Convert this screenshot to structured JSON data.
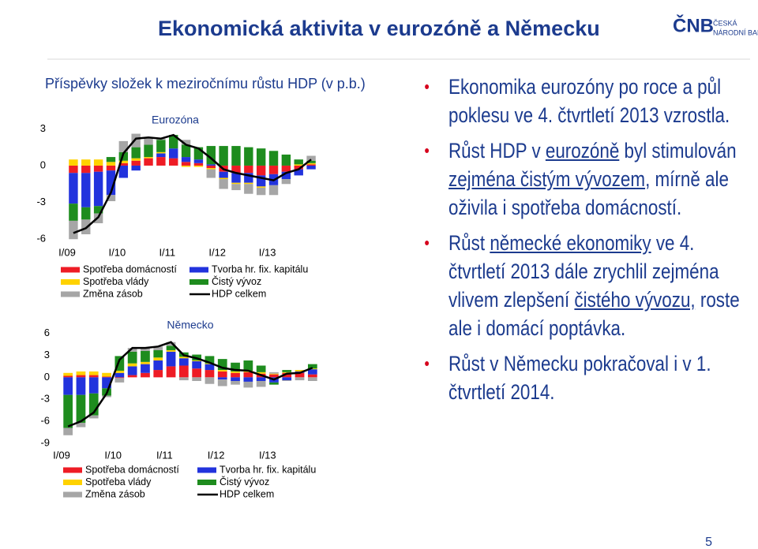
{
  "header": {
    "title": "Ekonomická aktivita v eurozóně a Německu"
  },
  "logo": {
    "mark": "ČNB",
    "line1": "ČESKÁ",
    "line2": "NÁRODNÍ BANKA"
  },
  "subtitle": "Příspěvky složek k meziročnímu růstu HDP (v p.b.)",
  "chart_data": [
    {
      "type": "bar",
      "stacked": true,
      "title": "Eurozóna",
      "categories": [
        "I/09",
        null,
        null,
        null,
        "I/10",
        null,
        null,
        null,
        "I/11",
        null,
        null,
        null,
        "I/12",
        null,
        null,
        null,
        "I/13",
        null,
        null,
        null
      ],
      "ylim": [
        -6.5,
        4.5
      ],
      "yticks": [
        3,
        0,
        -3,
        -6
      ],
      "series": [
        {
          "name": "Spotřeba domácností",
          "color": "#ee1c25",
          "values": [
            -0.6,
            -0.6,
            -0.5,
            -0.4,
            0.2,
            0.4,
            0.6,
            0.7,
            0.6,
            0.3,
            0.2,
            -0.2,
            -0.5,
            -0.6,
            -0.6,
            -0.8,
            -0.7,
            -0.5,
            -0.3,
            0.1
          ]
        },
        {
          "name": "Tvorba hr. fix. kapitálu",
          "color": "#2233dd",
          "values": [
            -2.5,
            -2.8,
            -2.8,
            -2.0,
            -1.0,
            -0.4,
            0.0,
            0.3,
            0.8,
            0.4,
            0.3,
            0.1,
            -0.5,
            -0.8,
            -0.8,
            -0.9,
            -0.9,
            -0.6,
            -0.5,
            -0.3
          ]
        },
        {
          "name": "Spotřeba vlády",
          "color": "#ffd200",
          "values": [
            0.5,
            0.5,
            0.5,
            0.3,
            0.2,
            0.2,
            0.1,
            0.1,
            0.0,
            -0.1,
            -0.1,
            -0.1,
            -0.1,
            -0.1,
            -0.1,
            -0.1,
            0.0,
            0.0,
            0.1,
            0.1
          ]
        },
        {
          "name": "Čistý vývoz",
          "color": "#1e8c1e",
          "values": [
            -1.4,
            -1.0,
            -0.6,
            0.4,
            0.7,
            0.9,
            1.0,
            1.0,
            1.1,
            1.0,
            1.0,
            1.5,
            1.6,
            1.6,
            1.5,
            1.4,
            1.2,
            0.9,
            0.4,
            0.2
          ]
        },
        {
          "name": "Změna zásob",
          "color": "#a6a6a6",
          "values": [
            -1.5,
            -1.2,
            -0.8,
            -0.5,
            0.9,
            1.1,
            0.6,
            0.1,
            0.0,
            0.4,
            0.0,
            -0.7,
            -0.8,
            -0.5,
            -0.8,
            -0.6,
            -0.8,
            -0.4,
            0.0,
            0.4
          ]
        },
        {
          "name": "HDP celkem",
          "type": "line",
          "color": "#000000",
          "values": [
            -5.5,
            -5.1,
            -4.2,
            -2.2,
            1.0,
            2.2,
            2.3,
            2.2,
            2.5,
            1.7,
            1.4,
            0.6,
            -0.3,
            -0.6,
            -0.8,
            -1.0,
            -1.2,
            -0.6,
            -0.3,
            0.5
          ]
        }
      ]
    },
    {
      "type": "bar",
      "stacked": true,
      "title": "Německo",
      "categories": [
        "I/09",
        null,
        null,
        null,
        "I/10",
        null,
        null,
        null,
        "I/11",
        null,
        null,
        null,
        "I/12",
        null,
        null,
        null,
        "I/13",
        null,
        null,
        null
      ],
      "ylim": [
        -9,
        8
      ],
      "yticks": [
        6,
        3,
        0,
        -3,
        -6,
        -9
      ],
      "series": [
        {
          "name": "Spotřeba domácností",
          "color": "#ee1c25",
          "values": [
            0.2,
            0.3,
            0.3,
            0.1,
            -0.1,
            0.3,
            0.6,
            1.0,
            1.5,
            1.6,
            1.2,
            1.0,
            0.8,
            0.6,
            0.7,
            0.5,
            0.4,
            0.6,
            0.6,
            0.4
          ]
        },
        {
          "name": "Tvorba hr. fix. kapitálu",
          "color": "#2233dd",
          "values": [
            -2.4,
            -2.4,
            -2.2,
            -1.5,
            0.6,
            1.2,
            1.2,
            1.3,
            2.0,
            1.0,
            1.0,
            0.8,
            -0.3,
            -0.5,
            -0.6,
            -0.5,
            -0.7,
            -0.4,
            0.2,
            0.7
          ]
        },
        {
          "name": "Spotřeba vlády",
          "color": "#ffd200",
          "values": [
            0.4,
            0.5,
            0.5,
            0.5,
            0.3,
            0.4,
            0.3,
            0.4,
            0.2,
            0.2,
            0.1,
            0.1,
            0.2,
            0.2,
            0.2,
            0.2,
            0.1,
            0.1,
            0.2,
            0.1
          ]
        },
        {
          "name": "Čistý vývoz",
          "color": "#1e8c1e",
          "values": [
            -4.5,
            -3.8,
            -3.0,
            -1.0,
            2.0,
            1.6,
            1.5,
            1.0,
            0.6,
            0.6,
            0.8,
            1.0,
            1.5,
            1.2,
            1.4,
            0.9,
            -0.3,
            0.3,
            0.0,
            0.6
          ]
        },
        {
          "name": "Změna zásob",
          "color": "#a6a6a6",
          "values": [
            -1.0,
            -0.6,
            -0.4,
            -0.2,
            -0.6,
            0.5,
            0.4,
            0.5,
            0.5,
            -0.4,
            -0.5,
            -0.9,
            -0.9,
            -0.5,
            -0.8,
            -0.8,
            0.2,
            -0.1,
            -0.4,
            -0.5
          ]
        },
        {
          "name": "HDP celkem",
          "type": "line",
          "color": "#000000",
          "values": [
            -6.7,
            -6.0,
            -4.8,
            -2.2,
            2.4,
            4.0,
            4.0,
            4.2,
            4.8,
            3.0,
            2.6,
            2.0,
            1.3,
            1.0,
            0.9,
            0.3,
            -0.3,
            0.5,
            0.6,
            1.3
          ]
        }
      ]
    }
  ],
  "bullets": [
    [
      {
        "text": "Ekonomika eurozóny po roce a půl poklesu ve 4. čtvrtletí 2013 vzrostla."
      }
    ],
    [
      {
        "text": "Růst HDP v "
      },
      {
        "text": "eurozóně",
        "underline": true
      },
      {
        "text": " byl stimulován "
      },
      {
        "text": "zejména čistým vývozem",
        "underline": true
      },
      {
        "text": ", mírně ale oživila i spotřeba domácností."
      }
    ],
    [
      {
        "text": "Růst "
      },
      {
        "text": "německé ekonomiky",
        "underline": true
      },
      {
        "text": " ve 4. čtvrtletí 2013 dále zrychlil zejména vlivem zlepšení "
      },
      {
        "text": "čistého vývozu,",
        "underline": true
      },
      {
        "text": " roste ale i domácí poptávka."
      }
    ],
    [
      {
        "text": "Růst v Německu pokračoval i v 1. čtvrtletí 2014."
      }
    ]
  ],
  "page_number": "5"
}
